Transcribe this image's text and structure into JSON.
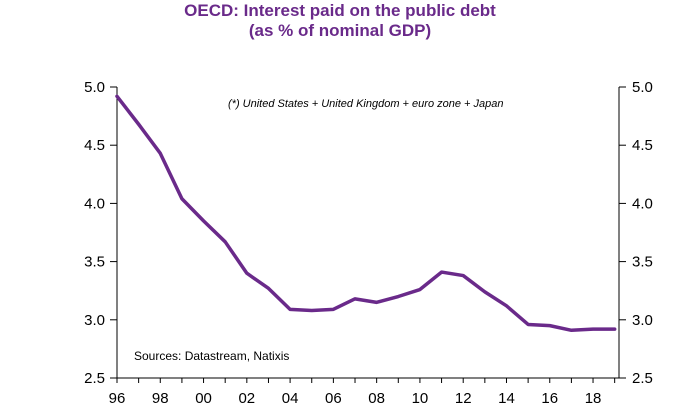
{
  "chart_data": {
    "type": "line",
    "title_line1": "OECD: Interest paid on the public debt",
    "title_line2": "(as % of nominal GDP)",
    "annotation": "(*) United States + United Kingdom + euro zone + Japan",
    "source": "Sources:  Datastream,  Natixis",
    "x_tick_labels": [
      "96",
      "98",
      "00",
      "02",
      "04",
      "06",
      "08",
      "10",
      "12",
      "14",
      "16",
      "18"
    ],
    "y_tick_labels": [
      "5.0",
      "4.5",
      "4.0",
      "3.5",
      "3.0",
      "2.5"
    ],
    "ylim": [
      2.5,
      5.0
    ],
    "xlim": [
      1996,
      2019.2
    ],
    "line_color": "#6a2a8a",
    "series": [
      {
        "x": [
          1996,
          1997,
          1998,
          1999,
          2000,
          2001,
          2002,
          2003,
          2004,
          2005,
          2006,
          2007,
          2008,
          2009,
          2010,
          2011,
          2012,
          2013,
          2014,
          2015,
          2016,
          2017,
          2018,
          2019
        ],
        "values": [
          4.92,
          4.68,
          4.43,
          4.04,
          3.85,
          3.67,
          3.4,
          3.27,
          3.09,
          3.08,
          3.09,
          3.18,
          3.15,
          3.2,
          3.26,
          3.41,
          3.38,
          3.24,
          3.12,
          2.96,
          2.95,
          2.91,
          2.92,
          2.92
        ]
      }
    ]
  }
}
